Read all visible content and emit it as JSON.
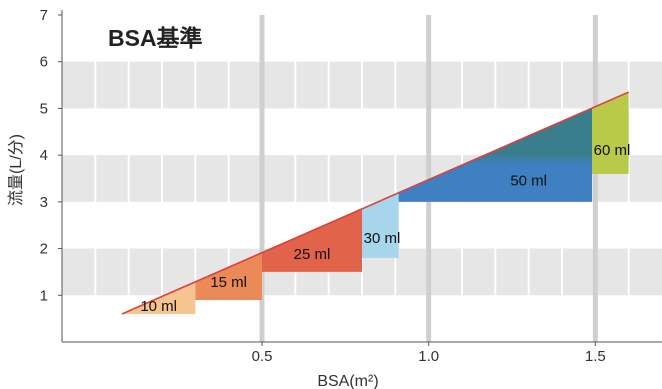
{
  "chart_data": {
    "type": "area",
    "title": "BSA基準",
    "xlabel": "BSA(m²)",
    "ylabel": "流量(L/分)",
    "xlim": [
      -0.1,
      1.7
    ],
    "ylim": [
      0,
      7
    ],
    "x_ticks": [
      "0.5",
      "1.0",
      "1.5"
    ],
    "y_ticks": [
      "1",
      "2",
      "3",
      "4",
      "5",
      "6",
      "7"
    ],
    "grid": true,
    "line": {
      "x": [
        0.08,
        1.6
      ],
      "y": [
        0.6,
        5.35
      ],
      "color": "#d9403f"
    },
    "series": [
      {
        "name": "10 ml",
        "x0": 0.08,
        "x1": 0.3,
        "y0": 0.6,
        "y1": 1.3,
        "color": "#f6c48e"
      },
      {
        "name": "15 ml",
        "x0": 0.3,
        "x1": 0.5,
        "y0": 0.9,
        "y1": 1.95,
        "color": "#eb8a57"
      },
      {
        "name": "25 ml",
        "x0": 0.5,
        "x1": 0.8,
        "y0": 1.5,
        "y1": 2.85,
        "color": "#e1634a"
      },
      {
        "name": "30 ml",
        "x0": 0.8,
        "x1": 0.91,
        "y0": 1.8,
        "y1": 3.2,
        "color": "#a7d6ec"
      },
      {
        "name": "50 ml",
        "x0": 0.91,
        "x1": 1.49,
        "y0": 3.0,
        "y1": 5.05,
        "colors": [
          "#3f80c3",
          "#3a7e8e"
        ]
      },
      {
        "name": "60 ml",
        "x0": 1.49,
        "x1": 1.6,
        "y0": 3.6,
        "y1": 5.35,
        "color": "#b9c94a"
      }
    ]
  }
}
